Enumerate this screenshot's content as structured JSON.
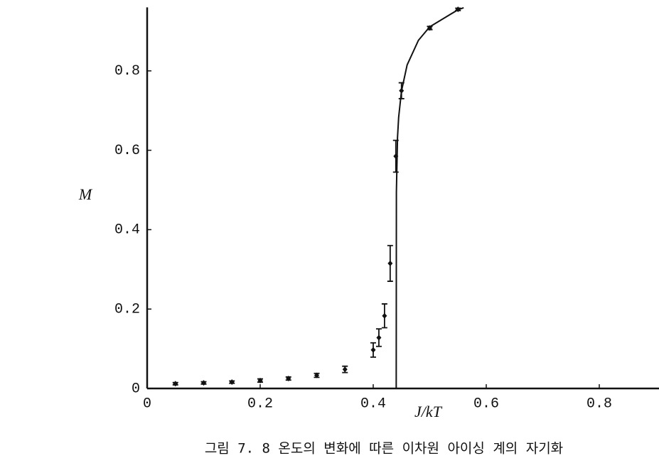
{
  "chart_data": {
    "type": "scatter",
    "caption": "그림 7. 8  온도의 변화에 따른 이차원 아이싱 계의 자기화",
    "xlabel": "J/kT",
    "ylabel": "M",
    "color": "#111111",
    "xlim": [
      0,
      0.9
    ],
    "ylim": [
      0,
      0.96
    ],
    "xticks": [
      0,
      0.2,
      0.4,
      0.6,
      0.8
    ],
    "yticks": [
      0,
      0.2,
      0.4,
      0.6,
      0.8
    ],
    "points": {
      "x": [
        0.05,
        0.1,
        0.15,
        0.2,
        0.25,
        0.3,
        0.35,
        0.4,
        0.41,
        0.42,
        0.43,
        0.44,
        0.45,
        0.5,
        0.55
      ],
      "values": [
        0.012,
        0.014,
        0.016,
        0.02,
        0.025,
        0.033,
        0.048,
        0.097,
        0.128,
        0.183,
        0.315,
        0.585,
        0.75,
        0.908,
        0.955
      ],
      "errors": [
        0.003,
        0.003,
        0.003,
        0.004,
        0.004,
        0.005,
        0.008,
        0.018,
        0.022,
        0.03,
        0.045,
        0.04,
        0.02,
        0.004,
        0.003
      ]
    },
    "curve": {
      "x": [
        0.4407,
        0.441,
        0.443,
        0.445,
        0.45,
        0.46,
        0.48,
        0.5,
        0.55,
        0.56
      ],
      "values": [
        0,
        0.495,
        0.633,
        0.683,
        0.749,
        0.815,
        0.877,
        0.911,
        0.954,
        0.959
      ]
    }
  }
}
